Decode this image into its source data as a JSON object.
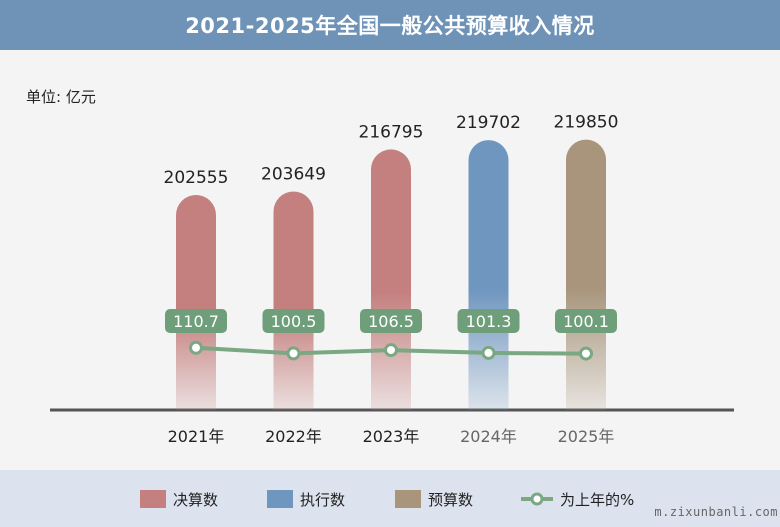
{
  "header": {
    "title": "2021-2025年全国一般公共预算收入情况"
  },
  "unit_label": "单位: 亿元",
  "legend": [
    {
      "label": "决算数",
      "color": "#c4807f",
      "kind": "swatch"
    },
    {
      "label": "执行数",
      "color": "#6f96bf",
      "kind": "swatch"
    },
    {
      "label": "预算数",
      "color": "#a8957c",
      "kind": "swatch"
    },
    {
      "label": "为上年的%",
      "color": "#7aa882",
      "kind": "line"
    }
  ],
  "watermark": "m.zixunbanli.com",
  "chart_data": {
    "type": "bar",
    "categories": [
      "2021年",
      "2022年",
      "2023年",
      "2024年",
      "2025年"
    ],
    "series": [
      {
        "name": "决算数",
        "values": [
          202555,
          203649,
          216795,
          null,
          null
        ],
        "color": "#c4807f"
      },
      {
        "name": "执行数",
        "values": [
          null,
          null,
          null,
          219702,
          null
        ],
        "color": "#6f96bf"
      },
      {
        "name": "预算数",
        "values": [
          null,
          null,
          null,
          null,
          219850
        ],
        "color": "#a8957c"
      },
      {
        "name": "为上年的%",
        "type": "line",
        "values": [
          110.7,
          100.5,
          106.5,
          101.3,
          100.1
        ],
        "color": "#7aa882"
      }
    ],
    "category_label_colors": [
      "#222222",
      "#222222",
      "#222222",
      "#666666",
      "#666666"
    ],
    "ylabel": "单位: 亿元"
  }
}
